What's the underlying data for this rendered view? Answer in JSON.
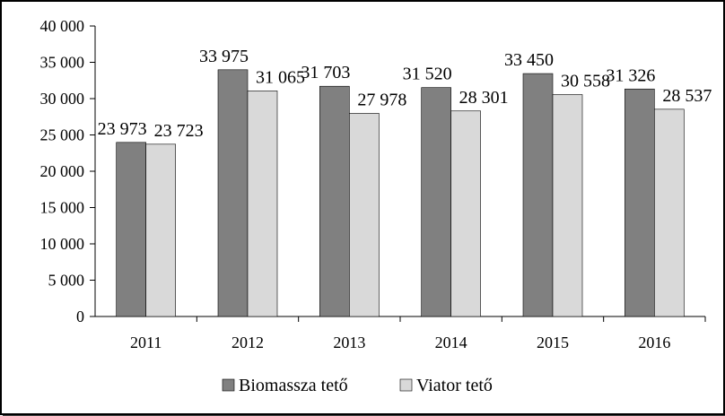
{
  "chart_data": {
    "type": "bar",
    "title": "",
    "xlabel": "",
    "ylabel": "",
    "categories": [
      "2011",
      "2012",
      "2013",
      "2014",
      "2015",
      "2016"
    ],
    "series": [
      {
        "name": "Biomassza tető",
        "color": "#808080",
        "values": [
          23973,
          33975,
          31703,
          31520,
          33450,
          31326
        ],
        "labels": [
          "23 973",
          "33 975",
          "31 703",
          "31 520",
          "33 450",
          "31 326"
        ]
      },
      {
        "name": "Viator tető",
        "color": "#d9d9d9",
        "values": [
          23723,
          31065,
          27978,
          28301,
          30558,
          28537
        ],
        "labels": [
          "23 723",
          "31 065",
          "27 978",
          "28 301",
          "30 558",
          "28 537"
        ]
      }
    ],
    "ylim": [
      0,
      40000
    ],
    "yticks": [
      0,
      5000,
      10000,
      15000,
      20000,
      25000,
      30000,
      35000,
      40000
    ],
    "ytick_labels": [
      "0",
      "5 000",
      "10 000",
      "15 000",
      "20 000",
      "25 000",
      "30 000",
      "35 000",
      "40 000"
    ],
    "grid": false,
    "legend_position": "bottom"
  }
}
